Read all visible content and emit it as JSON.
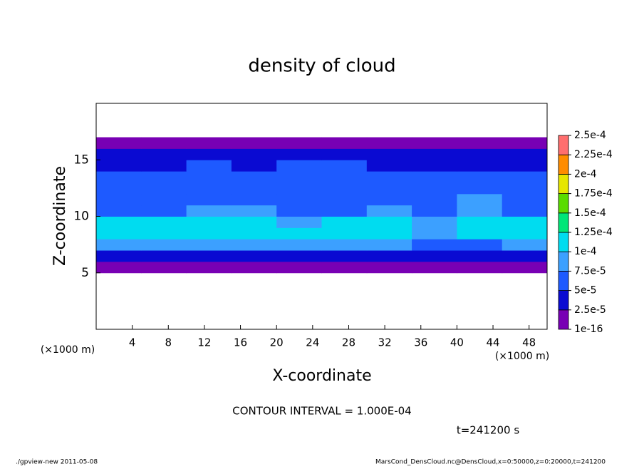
{
  "chart_data": {
    "type": "heatmap",
    "title": "density of cloud",
    "x_label": "X-coordinate",
    "y_label": "Z-coordinate",
    "x_unit": "(×1000 m)",
    "y_unit": "(×1000 m)",
    "contour_note": "CONTOUR INTERVAL = 1.000E-04",
    "time_note": "t=241200 s",
    "footer_left": "./gpview-new  2011-05-08",
    "footer_right": "MarsCond_DensCloud.nc@DensCloud,x=0:50000,z=0:20000,t=241200",
    "xlim": [
      0,
      50
    ],
    "ylim": [
      0,
      20
    ],
    "xticks": [
      4,
      8,
      12,
      16,
      20,
      24,
      28,
      32,
      36,
      40,
      44,
      48
    ],
    "yticks": [
      5,
      10,
      15
    ],
    "x": [
      2.5,
      7.5,
      12.5,
      17.5,
      22.5,
      27.5,
      32.5,
      37.5,
      42.5,
      47.5
    ],
    "y": [
      5.5,
      6.5,
      7.5,
      8.5,
      9.5,
      10.5,
      11.5,
      12.5,
      13.5,
      14.5,
      15.5,
      16.5
    ],
    "values": [
      [
        1.5e-05,
        2e-05,
        1.8e-05,
        1.2e-05,
        1.5e-05,
        1.8e-05,
        2e-05,
        1.5e-05,
        1.2e-05,
        1.6e-05
      ],
      [
        4e-05,
        3.5e-05,
        3e-05,
        3.5e-05,
        4e-05,
        3.8e-05,
        3.2e-05,
        3e-05,
        3.5e-05,
        4e-05
      ],
      [
        8e-05,
        8.5e-05,
        8e-05,
        7.8e-05,
        7.6e-05,
        7.7e-05,
        7.6e-05,
        6.5e-05,
        7e-05,
        8e-05
      ],
      [
        0.00011,
        0.000115,
        0.00012,
        0.000105,
        0.000102,
        0.0001,
        0.000105,
        9e-05,
        0.000105,
        0.000108
      ],
      [
        0.000105,
        0.00011,
        0.000118,
        0.000102,
        9.5e-05,
        0.0001,
        0.000102,
        9.5e-05,
        0.000103,
        0.000104
      ],
      [
        6e-05,
        7e-05,
        8e-05,
        7.8e-05,
        6.5e-05,
        6e-05,
        7.8e-05,
        7e-05,
        8e-05,
        6e-05
      ],
      [
        6e-05,
        6.5e-05,
        7e-05,
        6.5e-05,
        6e-05,
        5.5e-05,
        6e-05,
        6.5e-05,
        7.6e-05,
        6e-05
      ],
      [
        5.5e-05,
        6e-05,
        6e-05,
        5.5e-05,
        5.2e-05,
        5.5e-05,
        6e-05,
        6e-05,
        5.5e-05,
        5e-05
      ],
      [
        5e-05,
        5.5e-05,
        5.2e-05,
        5e-05,
        5.5e-05,
        5.2e-05,
        5.6e-05,
        5.5e-05,
        5e-05,
        5e-05
      ],
      [
        4.5e-05,
        4.8e-05,
        5e-05,
        4.5e-05,
        5.1e-05,
        5e-05,
        4.8e-05,
        4.6e-05,
        4.5e-05,
        4.2e-05
      ],
      [
        3e-05,
        3.5e-05,
        3.2e-05,
        3e-05,
        3.4e-05,
        3.2e-05,
        3e-05,
        3.3e-05,
        3e-05,
        3e-05
      ],
      [
        1e-05,
        1e-05,
        1e-05,
        1e-05,
        1e-05,
        1e-05,
        1e-05,
        1e-05,
        1e-05,
        1e-05
      ]
    ],
    "colorbar": {
      "ticks": [
        {
          "value": 1e-16,
          "label": "1e-16"
        },
        {
          "value": 2.5e-05,
          "label": "2.5e-5"
        },
        {
          "value": 5e-05,
          "label": "5e-5"
        },
        {
          "value": 7.5e-05,
          "label": "7.5e-5"
        },
        {
          "value": 0.0001,
          "label": "1e-4"
        },
        {
          "value": 0.000125,
          "label": "1.25e-4"
        },
        {
          "value": 0.00015,
          "label": "1.5e-4"
        },
        {
          "value": 0.000175,
          "label": "1.75e-4"
        },
        {
          "value": 0.0002,
          "label": "2e-4"
        },
        {
          "value": 0.000225,
          "label": "2.25e-4"
        },
        {
          "value": 0.00025,
          "label": "2.5e-4"
        }
      ],
      "colors": [
        "#7800b4",
        "#0a0ad2",
        "#1e5aff",
        "#3ca0ff",
        "#00dcf0",
        "#00e678",
        "#5adc00",
        "#e6e600",
        "#ff8c00",
        "#ff6e6e"
      ]
    }
  }
}
